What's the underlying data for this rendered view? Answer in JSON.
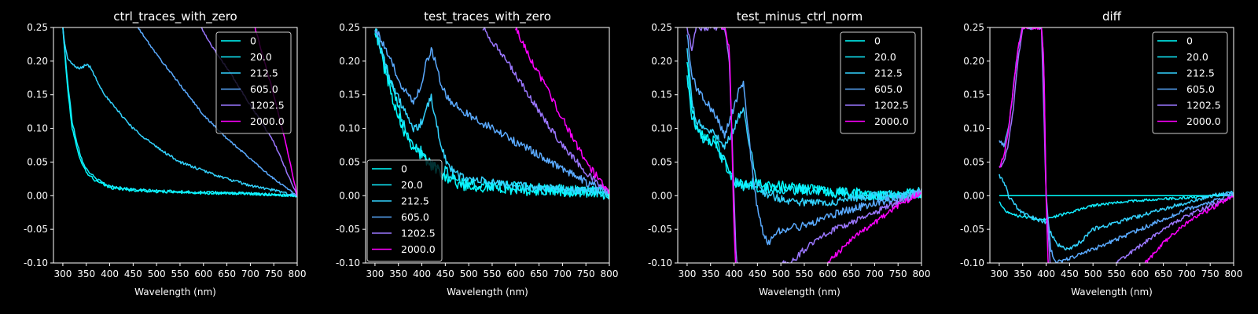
{
  "figure": {
    "background": "#000000",
    "foreground": "#ffffff"
  },
  "chart_data": [
    {
      "type": "line",
      "title": "ctrl_traces_with_zero",
      "xlabel": "Wavelength (nm)",
      "ylabel": "",
      "xlim": [
        280,
        800
      ],
      "ylim": [
        -0.1,
        0.25
      ],
      "xticks": [
        300,
        350,
        400,
        450,
        500,
        550,
        600,
        650,
        700,
        750,
        800
      ],
      "yticks": [
        -0.1,
        -0.05,
        0.0,
        0.05,
        0.1,
        0.15,
        0.2,
        0.25
      ],
      "grid": false,
      "legend": "top-right",
      "series": [
        {
          "name": "0",
          "color": "#00ffff",
          "noise": 0.002,
          "x": [
            300,
            310,
            320,
            330,
            340,
            350,
            370,
            400,
            450,
            500,
            600,
            700,
            800
          ],
          "y": [
            0.25,
            0.16,
            0.1,
            0.07,
            0.05,
            0.035,
            0.022,
            0.012,
            0.008,
            0.006,
            0.004,
            0.003,
            0.0
          ]
        },
        {
          "name": "20.0",
          "color": "#11eeff",
          "noise": 0.002,
          "x": [
            300,
            310,
            320,
            330,
            340,
            350,
            370,
            400,
            450,
            500,
            600,
            700,
            800
          ],
          "y": [
            0.25,
            0.17,
            0.11,
            0.08,
            0.055,
            0.04,
            0.025,
            0.014,
            0.009,
            0.007,
            0.005,
            0.003,
            0.0
          ]
        },
        {
          "name": "212.5",
          "color": "#33d3ff",
          "noise": 0.002,
          "x": [
            300,
            305,
            310,
            320,
            330,
            340,
            350,
            360,
            370,
            380,
            390,
            400,
            450,
            500,
            550,
            600,
            650,
            700,
            750,
            800
          ],
          "y": [
            0.25,
            0.22,
            0.205,
            0.195,
            0.19,
            0.19,
            0.195,
            0.19,
            0.175,
            0.162,
            0.15,
            0.14,
            0.1,
            0.072,
            0.05,
            0.037,
            0.025,
            0.015,
            0.008,
            0.0
          ]
        },
        {
          "name": "605.0",
          "color": "#5aaaff",
          "noise": 0.0015,
          "x": [
            460,
            480,
            500,
            550,
            600,
            650,
            700,
            750,
            800
          ],
          "y": [
            0.25,
            0.23,
            0.21,
            0.165,
            0.12,
            0.085,
            0.055,
            0.025,
            0.0
          ]
        },
        {
          "name": "1202.5",
          "color": "#9b77ff",
          "noise": 0.0015,
          "x": [
            595,
            620,
            650,
            700,
            750,
            800
          ],
          "y": [
            0.25,
            0.22,
            0.19,
            0.135,
            0.08,
            0.0
          ]
        },
        {
          "name": "2000.0",
          "color": "#ff00ff",
          "noise": 0.0015,
          "x": [
            710,
            730,
            750,
            775,
            800
          ],
          "y": [
            0.25,
            0.2,
            0.15,
            0.08,
            0.0
          ]
        }
      ]
    },
    {
      "type": "line",
      "title": "test_traces_with_zero",
      "xlabel": "Wavelength (nm)",
      "ylabel": "",
      "xlim": [
        280,
        800
      ],
      "ylim": [
        -0.1,
        0.25
      ],
      "xticks": [
        300,
        350,
        400,
        450,
        500,
        550,
        600,
        650,
        700,
        750,
        800
      ],
      "yticks": [
        -0.1,
        -0.05,
        0.0,
        0.05,
        0.1,
        0.15,
        0.2,
        0.25
      ],
      "grid": false,
      "legend": "bottom-left",
      "series": [
        {
          "name": "0",
          "color": "#00ffff",
          "noise": 0.009,
          "x": [
            300,
            320,
            340,
            360,
            380,
            400,
            420,
            440,
            460,
            480,
            500,
            550,
            600,
            650,
            700,
            750,
            800
          ],
          "y": [
            0.25,
            0.19,
            0.14,
            0.1,
            0.075,
            0.06,
            0.045,
            0.035,
            0.025,
            0.018,
            0.015,
            0.012,
            0.01,
            0.008,
            0.007,
            0.005,
            0.003
          ]
        },
        {
          "name": "20.0",
          "color": "#11eeff",
          "noise": 0.009,
          "x": [
            300,
            320,
            340,
            360,
            380,
            400,
            420,
            440,
            460,
            480,
            500,
            550,
            600,
            650,
            700,
            750,
            800
          ],
          "y": [
            0.25,
            0.2,
            0.15,
            0.11,
            0.08,
            0.065,
            0.05,
            0.04,
            0.03,
            0.022,
            0.018,
            0.015,
            0.012,
            0.01,
            0.008,
            0.006,
            0.003
          ]
        },
        {
          "name": "212.5",
          "color": "#33d3ff",
          "noise": 0.006,
          "x": [
            300,
            320,
            340,
            360,
            380,
            390,
            400,
            410,
            420,
            430,
            440,
            450,
            460,
            480,
            500,
            550,
            600,
            650,
            700,
            750,
            800
          ],
          "y": [
            0.25,
            0.2,
            0.16,
            0.13,
            0.1,
            0.1,
            0.11,
            0.13,
            0.145,
            0.11,
            0.08,
            0.055,
            0.04,
            0.03,
            0.025,
            0.02,
            0.015,
            0.012,
            0.01,
            0.008,
            0.005
          ]
        },
        {
          "name": "605.0",
          "color": "#5aaaff",
          "noise": 0.006,
          "x": [
            300,
            320,
            340,
            360,
            380,
            390,
            400,
            410,
            420,
            430,
            440,
            450,
            460,
            480,
            500,
            550,
            600,
            650,
            700,
            750,
            800
          ],
          "y": [
            0.25,
            0.22,
            0.19,
            0.16,
            0.14,
            0.15,
            0.17,
            0.2,
            0.215,
            0.2,
            0.17,
            0.15,
            0.14,
            0.13,
            0.12,
            0.1,
            0.08,
            0.06,
            0.04,
            0.02,
            0.005
          ]
        },
        {
          "name": "1202.5",
          "color": "#9b77ff",
          "noise": 0.005,
          "x": [
            530,
            550,
            600,
            650,
            700,
            750,
            800
          ],
          "y": [
            0.25,
            0.23,
            0.18,
            0.125,
            0.075,
            0.035,
            0.005
          ]
        },
        {
          "name": "2000.0",
          "color": "#ff00ff",
          "noise": 0.005,
          "x": [
            600,
            620,
            650,
            700,
            750,
            800
          ],
          "y": [
            0.25,
            0.22,
            0.18,
            0.115,
            0.05,
            0.005
          ]
        }
      ]
    },
    {
      "type": "line",
      "title": "test_minus_ctrl_norm",
      "xlabel": "Wavelength (nm)",
      "ylabel": "",
      "xlim": [
        280,
        800
      ],
      "ylim": [
        -0.1,
        0.25
      ],
      "xticks": [
        300,
        350,
        400,
        450,
        500,
        550,
        600,
        650,
        700,
        750,
        800
      ],
      "yticks": [
        -0.1,
        -0.05,
        0.0,
        0.05,
        0.1,
        0.15,
        0.2,
        0.25
      ],
      "grid": false,
      "legend": "top-right",
      "series": [
        {
          "name": "0",
          "color": "#00ffff",
          "noise": 0.008,
          "x": [
            300,
            310,
            320,
            340,
            360,
            380,
            400,
            420,
            440,
            460,
            480,
            500,
            550,
            600,
            650,
            700,
            750,
            800
          ],
          "y": [
            0.2,
            0.13,
            0.1,
            0.085,
            0.08,
            0.05,
            0.02,
            0.015,
            0.02,
            0.015,
            0.015,
            0.015,
            0.01,
            0.005,
            0.005,
            0.0,
            0.0,
            0.005
          ]
        },
        {
          "name": "20.0",
          "color": "#11eeff",
          "noise": 0.008,
          "x": [
            300,
            310,
            320,
            340,
            360,
            380,
            400,
            420,
            440,
            460,
            480,
            500,
            550,
            600,
            650,
            700,
            750,
            800
          ],
          "y": [
            0.18,
            0.12,
            0.1,
            0.08,
            0.075,
            0.05,
            0.02,
            0.015,
            0.015,
            0.01,
            0.01,
            0.01,
            0.008,
            0.005,
            0.003,
            0.0,
            0.0,
            0.005
          ]
        },
        {
          "name": "212.5",
          "color": "#33d3ff",
          "noise": 0.006,
          "x": [
            300,
            310,
            320,
            340,
            360,
            380,
            390,
            400,
            410,
            420,
            430,
            440,
            450,
            460,
            480,
            500,
            550,
            600,
            650,
            700,
            750,
            800
          ],
          "y": [
            0.22,
            0.14,
            0.11,
            0.1,
            0.09,
            0.075,
            0.085,
            0.1,
            0.12,
            0.125,
            0.09,
            0.05,
            0.02,
            0.005,
            0.0,
            -0.005,
            -0.01,
            -0.01,
            -0.005,
            0.0,
            0.0,
            0.005
          ]
        },
        {
          "name": "605.0",
          "color": "#5aaaff",
          "noise": 0.006,
          "x": [
            300,
            310,
            320,
            340,
            360,
            380,
            390,
            400,
            410,
            420,
            430,
            440,
            450,
            460,
            470,
            480,
            500,
            550,
            600,
            650,
            700,
            750,
            800
          ],
          "y": [
            0.24,
            0.18,
            0.16,
            0.14,
            0.12,
            0.09,
            0.11,
            0.13,
            0.155,
            0.165,
            0.1,
            0.03,
            -0.02,
            -0.05,
            -0.07,
            -0.065,
            -0.05,
            -0.045,
            -0.03,
            -0.02,
            -0.01,
            -0.005,
            0.005
          ]
        },
        {
          "name": "1202.5",
          "color": "#9b77ff",
          "noise": 0.005,
          "x": [
            300,
            310,
            320,
            340,
            360,
            380,
            390,
            400,
            405,
            410,
            520,
            550,
            600,
            650,
            700,
            750,
            800
          ],
          "y": [
            0.25,
            0.22,
            0.25,
            0.25,
            0.25,
            0.25,
            0.2,
            0.0,
            -0.1,
            -0.11,
            -0.1,
            -0.08,
            -0.055,
            -0.04,
            -0.025,
            -0.01,
            0.005
          ]
        },
        {
          "name": "2000.0",
          "color": "#ff00ff",
          "noise": 0.004,
          "x": [
            363,
            370,
            380,
            390,
            395,
            400,
            405,
            590,
            600,
            650,
            700,
            750,
            800
          ],
          "y": [
            0.25,
            0.25,
            0.25,
            0.22,
            0.1,
            -0.05,
            -0.12,
            -0.12,
            -0.1,
            -0.065,
            -0.04,
            -0.015,
            0.005
          ]
        }
      ]
    },
    {
      "type": "line",
      "title": "diff",
      "xlabel": "Wavelength (nm)",
      "ylabel": "",
      "xlim": [
        280,
        800
      ],
      "ylim": [
        -0.1,
        0.25
      ],
      "xticks": [
        300,
        350,
        400,
        450,
        500,
        550,
        600,
        650,
        700,
        750,
        800
      ],
      "yticks": [
        -0.1,
        -0.05,
        0.0,
        0.05,
        0.1,
        0.15,
        0.2,
        0.25
      ],
      "grid": false,
      "legend": "top-right",
      "series": [
        {
          "name": "0",
          "color": "#00ffff",
          "noise": 0,
          "x": [
            300,
            800
          ],
          "y": [
            0.0,
            0.0
          ]
        },
        {
          "name": "20.0",
          "color": "#11eeff",
          "noise": 0.002,
          "x": [
            300,
            310,
            320,
            340,
            360,
            380,
            400,
            450,
            500,
            550,
            600,
            650,
            700,
            750,
            800
          ],
          "y": [
            -0.01,
            -0.02,
            -0.025,
            -0.03,
            -0.032,
            -0.035,
            -0.035,
            -0.025,
            -0.015,
            -0.01,
            -0.007,
            -0.005,
            -0.003,
            0.0,
            0.003
          ]
        },
        {
          "name": "212.5",
          "color": "#33d3ff",
          "noise": 0.003,
          "x": [
            300,
            310,
            320,
            340,
            360,
            380,
            400,
            420,
            440,
            460,
            480,
            500,
            550,
            600,
            650,
            700,
            750,
            800
          ],
          "y": [
            0.03,
            0.02,
            0.0,
            -0.02,
            -0.03,
            -0.035,
            -0.04,
            -0.07,
            -0.08,
            -0.075,
            -0.065,
            -0.05,
            -0.04,
            -0.03,
            -0.02,
            -0.01,
            0.0,
            0.005
          ]
        },
        {
          "name": "605.0",
          "color": "#5aaaff",
          "noise": 0.003,
          "x": [
            300,
            310,
            320,
            330,
            340,
            350,
            360,
            370,
            380,
            390,
            395,
            400,
            410,
            420,
            440,
            460,
            480,
            500,
            550,
            600,
            650,
            700,
            750,
            800
          ],
          "y": [
            0.08,
            0.075,
            0.1,
            0.16,
            0.22,
            0.25,
            0.25,
            0.25,
            0.25,
            0.25,
            0.2,
            0.0,
            -0.08,
            -0.1,
            -0.095,
            -0.09,
            -0.085,
            -0.08,
            -0.065,
            -0.05,
            -0.035,
            -0.02,
            -0.01,
            0.005
          ]
        },
        {
          "name": "1202.5",
          "color": "#9b77ff",
          "noise": 0.003,
          "x": [
            300,
            310,
            320,
            330,
            340,
            350,
            360,
            370,
            380,
            390,
            400,
            410,
            540,
            550,
            600,
            650,
            700,
            750,
            800
          ],
          "y": [
            0.04,
            0.05,
            0.08,
            0.13,
            0.2,
            0.25,
            0.25,
            0.25,
            0.25,
            0.25,
            0.0,
            -0.12,
            -0.12,
            -0.1,
            -0.075,
            -0.05,
            -0.03,
            -0.015,
            0.0
          ]
        },
        {
          "name": "2000.0",
          "color": "#ff00ff",
          "noise": 0.003,
          "x": [
            300,
            310,
            320,
            330,
            340,
            350,
            360,
            370,
            380,
            390,
            395,
            400,
            405,
            600,
            650,
            700,
            750,
            800
          ],
          "y": [
            0.04,
            0.06,
            0.1,
            0.16,
            0.22,
            0.25,
            0.25,
            0.25,
            0.25,
            0.25,
            0.2,
            0.0,
            -0.12,
            -0.11,
            -0.07,
            -0.04,
            -0.02,
            0.0
          ]
        }
      ]
    }
  ]
}
